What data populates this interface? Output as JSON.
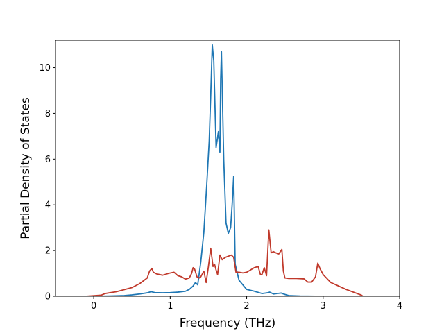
{
  "chart_data": {
    "type": "line",
    "title": "",
    "xlabel": "Frequency (THz)",
    "ylabel": "Partial Density of States",
    "xlim": [
      -0.5,
      4.0
    ],
    "ylim": [
      0,
      11.2
    ],
    "xticks": [
      0,
      1,
      2,
      3,
      4
    ],
    "yticks": [
      0,
      2,
      4,
      6,
      8,
      10
    ],
    "grid": false,
    "legend": "none",
    "series": [
      {
        "color": "#1f77b4",
        "x": [
          -0.5,
          0.0,
          0.2,
          0.4,
          0.5,
          0.6,
          0.7,
          0.75,
          0.8,
          0.9,
          1.0,
          1.1,
          1.2,
          1.25,
          1.3,
          1.33,
          1.36,
          1.4,
          1.44,
          1.48,
          1.51,
          1.53,
          1.55,
          1.57,
          1.6,
          1.63,
          1.65,
          1.66,
          1.67,
          1.7,
          1.73,
          1.76,
          1.79,
          1.81,
          1.83,
          1.85,
          1.9,
          1.95,
          2.0,
          2.1,
          2.2,
          2.27,
          2.3,
          2.35,
          2.45,
          2.5,
          2.55,
          2.7,
          3.0,
          3.5,
          3.88
        ],
        "y": [
          0.0,
          0.0,
          0.01,
          0.03,
          0.06,
          0.1,
          0.15,
          0.2,
          0.16,
          0.15,
          0.16,
          0.18,
          0.22,
          0.3,
          0.45,
          0.6,
          0.5,
          1.5,
          2.8,
          5.0,
          6.8,
          8.8,
          11.0,
          10.3,
          6.5,
          7.2,
          6.3,
          9.5,
          10.7,
          6.0,
          3.2,
          2.75,
          3.0,
          4.0,
          5.25,
          1.4,
          0.7,
          0.5,
          0.3,
          0.22,
          0.12,
          0.15,
          0.18,
          0.1,
          0.14,
          0.08,
          0.03,
          0.01,
          0.0,
          0.0,
          0.0
        ]
      },
      {
        "color": "#c0392b",
        "x": [
          -0.5,
          -0.1,
          0.1,
          0.15,
          0.3,
          0.5,
          0.6,
          0.7,
          0.73,
          0.76,
          0.78,
          0.82,
          0.9,
          0.98,
          1.05,
          1.1,
          1.15,
          1.2,
          1.25,
          1.28,
          1.3,
          1.32,
          1.35,
          1.38,
          1.4,
          1.44,
          1.47,
          1.5,
          1.53,
          1.56,
          1.58,
          1.6,
          1.62,
          1.65,
          1.68,
          1.72,
          1.76,
          1.8,
          1.83,
          1.86,
          1.9,
          1.95,
          2.0,
          2.05,
          2.1,
          2.15,
          2.18,
          2.2,
          2.23,
          2.26,
          2.29,
          2.32,
          2.35,
          2.38,
          2.42,
          2.46,
          2.48,
          2.5,
          2.55,
          2.65,
          2.75,
          2.8,
          2.85,
          2.9,
          2.93,
          2.96,
          3.0,
          3.1,
          3.3,
          3.5,
          3.52,
          3.88
        ],
        "y": [
          0.0,
          0.0,
          0.05,
          0.12,
          0.2,
          0.38,
          0.55,
          0.8,
          1.1,
          1.22,
          1.05,
          0.98,
          0.92,
          1.0,
          1.05,
          0.9,
          0.85,
          0.75,
          0.8,
          1.0,
          1.25,
          1.18,
          0.85,
          0.8,
          0.85,
          1.1,
          0.6,
          1.3,
          2.1,
          1.3,
          1.4,
          1.15,
          0.95,
          1.8,
          1.6,
          1.7,
          1.75,
          1.8,
          1.7,
          1.05,
          1.05,
          1.02,
          1.05,
          1.15,
          1.25,
          1.3,
          0.95,
          0.95,
          1.25,
          0.9,
          2.9,
          1.9,
          1.95,
          1.9,
          1.85,
          2.05,
          1.1,
          0.8,
          0.78,
          0.78,
          0.76,
          0.62,
          0.62,
          0.85,
          1.45,
          1.2,
          0.95,
          0.6,
          0.3,
          0.05,
          0.0,
          0.0
        ]
      }
    ]
  }
}
